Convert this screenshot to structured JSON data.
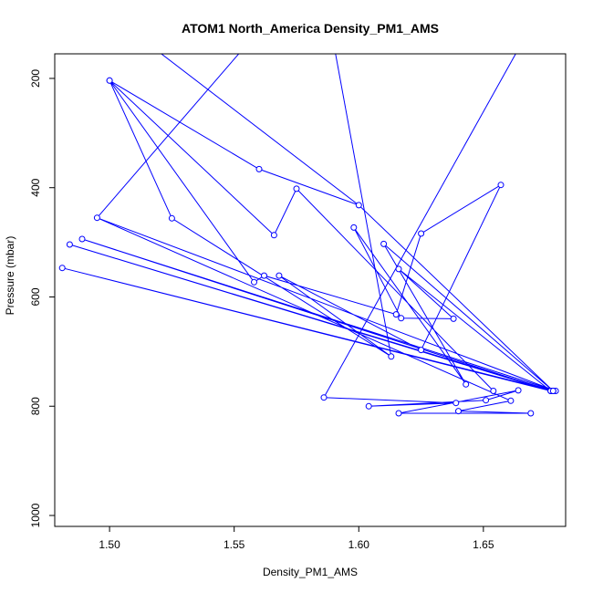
{
  "chart_data": {
    "type": "line",
    "title": "ATOM1 North_America Density_PM1_AMS",
    "xlabel": "Density_PM1_AMS",
    "ylabel": "Pressure (mbar)",
    "xlim": [
      1.478,
      1.683
    ],
    "ylim": [
      1020,
      155
    ],
    "y_reversed": true,
    "x_ticks": [
      1.5,
      1.55,
      1.6,
      1.65
    ],
    "x_tick_labels": [
      "1.50",
      "1.55",
      "1.60",
      "1.65"
    ],
    "y_ticks": [
      200,
      400,
      600,
      800,
      1000
    ],
    "y_tick_labels": [
      "200",
      "400",
      "600",
      "800",
      "1000"
    ],
    "grid": false,
    "series": [
      {
        "color": "#0000ff",
        "marker": "open-circle",
        "points": [
          {
            "x": 1.586,
            "y": 784
          },
          {
            "x": 1.639,
            "y": 794
          },
          {
            "x": 1.604,
            "y": 800
          },
          {
            "x": 1.651,
            "y": 789
          },
          {
            "x": 1.664,
            "y": 771
          },
          {
            "x": 1.616,
            "y": 813
          },
          {
            "x": 1.669,
            "y": 813
          },
          {
            "x": 1.64,
            "y": 809
          },
          {
            "x": 1.661,
            "y": 790
          },
          {
            "x": 1.495,
            "y": 455
          },
          {
            "x": 1.679,
            "y": 772
          },
          {
            "x": 1.489,
            "y": 494
          },
          {
            "x": 1.677,
            "y": 772
          },
          {
            "x": 1.484,
            "y": 504
          },
          {
            "x": 1.678,
            "y": 772
          },
          {
            "x": 1.481,
            "y": 547
          },
          {
            "x": 1.677,
            "y": 772
          },
          {
            "x": 1.616,
            "y": 549
          },
          {
            "x": 1.638,
            "y": 640
          },
          {
            "x": 1.617,
            "y": 639
          },
          {
            "x": 1.598,
            "y": 473
          },
          {
            "x": 1.643,
            "y": 760
          },
          {
            "x": 1.61,
            "y": 503
          },
          {
            "x": 1.678,
            "y": 772
          },
          {
            "x": 1.6,
            "y": 432
          },
          {
            "x": 1.56,
            "y": 366
          },
          {
            "x": 1.5,
            "y": 204
          },
          {
            "x": 1.558,
            "y": 573
          },
          {
            "x": 1.562,
            "y": 561
          },
          {
            "x": 1.615,
            "y": 632
          },
          {
            "x": 1.625,
            "y": 484
          },
          {
            "x": 1.657,
            "y": 395
          },
          {
            "x": 1.625,
            "y": 697
          },
          {
            "x": 1.568,
            "y": 561
          },
          {
            "x": 1.613,
            "y": 709
          },
          {
            "x": 1.525,
            "y": 456
          },
          {
            "x": 1.5,
            "y": 204
          },
          {
            "x": 1.566,
            "y": 487
          },
          {
            "x": 1.575,
            "y": 402
          },
          {
            "x": 1.654,
            "y": 772
          }
        ],
        "to_top_edge": [
          {
            "x": 1.516,
            "y": 155,
            "from_index": 1.5
          },
          {
            "x": 1.555,
            "y": 155
          },
          {
            "x": 1.59,
            "y": 155
          },
          {
            "x": 1.665,
            "y": 155
          }
        ]
      }
    ]
  }
}
